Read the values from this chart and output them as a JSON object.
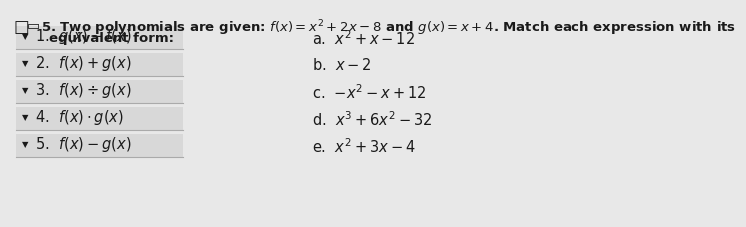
{
  "title_line1": "5. Two polynomials are given: $f(x)=x^2+2x-8$ and $g(x)=x+4$. Match each expression with its",
  "title_line2": "equivalent form:",
  "left_items": [
    "1.  $g(x)-f(x)$",
    "2.  $f(x)+g(x)$",
    "3.  $f(x)\\div g(x)$",
    "4.  $f(x)\\cdot g(x)$",
    "5.  $f(x)-g(x)$"
  ],
  "right_items": [
    "a.  $x^2+x-12$",
    "b.  $x-2$",
    "c.  $-x^2-x+12$",
    "d.  $x^3+6x^2-32$",
    "e.  $x^2+3x-4$"
  ],
  "background_color": "#e8e8e8",
  "row_bg_color": "#d8d8d8",
  "row_line_color": "#aaaaaa",
  "text_color": "#1a1a1a",
  "title_fontsize": 9.5,
  "item_fontsize": 10.5,
  "fig_width": 7.56,
  "fig_height": 2.69
}
